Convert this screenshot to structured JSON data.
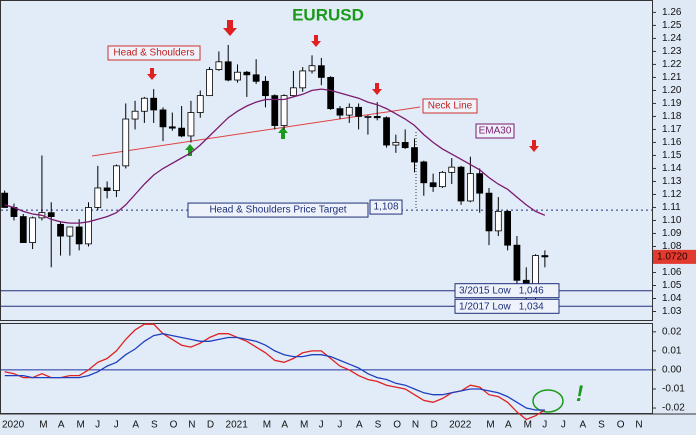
{
  "chart_data": [
    {
      "type": "candlestick",
      "title": "EURUSD",
      "open": [
        1.121,
        1.11,
        1.103,
        1.083,
        1.102,
        1.106,
        1.097,
        1.088,
        1.095,
        1.082,
        1.11,
        1.125,
        1.123,
        1.142,
        1.178,
        1.184,
        1.194,
        1.185,
        1.172,
        1.171,
        1.165,
        1.183,
        1.196,
        1.216,
        1.222,
        1.208,
        1.214,
        1.212,
        1.207,
        1.196,
        1.173,
        1.196,
        1.202,
        1.215,
        1.219,
        1.21,
        1.186,
        1.181,
        1.187,
        1.18,
        1.18,
        1.179,
        1.158,
        1.16,
        1.156,
        1.145,
        1.129,
        1.126,
        1.137,
        1.141,
        1.115,
        1.136,
        1.121,
        1.092,
        1.107,
        1.081,
        1.054,
        1.041,
        1.073,
        null,
        null,
        null,
        null,
        null,
        null,
        null,
        null,
        null,
        null,
        null
      ],
      "high": [
        1.123,
        1.113,
        1.105,
        1.103,
        1.15,
        1.114,
        1.099,
        1.095,
        1.101,
        1.114,
        1.142,
        1.13,
        1.143,
        1.19,
        1.192,
        1.195,
        1.201,
        1.187,
        1.183,
        1.188,
        1.192,
        1.2,
        1.218,
        1.23,
        1.235,
        1.22,
        1.215,
        1.224,
        1.211,
        1.197,
        1.197,
        1.215,
        1.218,
        1.227,
        1.225,
        1.211,
        1.188,
        1.19,
        1.19,
        1.181,
        1.191,
        1.18,
        1.166,
        1.17,
        1.163,
        1.146,
        1.136,
        1.138,
        1.148,
        1.142,
        1.149,
        1.14,
        1.125,
        1.118,
        1.108,
        1.088,
        1.064,
        1.074,
        1.077,
        null,
        null,
        null,
        null,
        null,
        null,
        null,
        null,
        null,
        null,
        null
      ],
      "low": [
        1.11,
        1.1,
        1.083,
        1.078,
        1.1,
        1.064,
        1.073,
        1.073,
        1.077,
        1.08,
        1.108,
        1.117,
        1.118,
        1.14,
        1.17,
        1.175,
        1.175,
        1.161,
        1.169,
        1.164,
        1.16,
        1.179,
        1.196,
        1.215,
        1.207,
        1.206,
        1.195,
        1.205,
        1.187,
        1.17,
        1.17,
        1.195,
        1.199,
        1.213,
        1.204,
        1.185,
        1.178,
        1.175,
        1.17,
        1.166,
        1.177,
        1.156,
        1.152,
        1.155,
        1.137,
        1.119,
        1.122,
        1.125,
        1.128,
        1.112,
        1.114,
        1.106,
        1.081,
        1.088,
        1.077,
        1.047,
        1.035,
        1.035,
        1.064,
        null,
        null,
        null,
        null,
        null,
        null,
        null,
        null,
        null,
        null,
        null
      ],
      "close": [
        1.11,
        1.103,
        1.083,
        1.102,
        1.106,
        1.103,
        1.088,
        1.095,
        1.082,
        1.11,
        1.125,
        1.123,
        1.142,
        1.178,
        1.184,
        1.194,
        1.185,
        1.172,
        1.171,
        1.165,
        1.183,
        1.196,
        1.216,
        1.222,
        1.208,
        1.214,
        1.212,
        1.207,
        1.196,
        1.173,
        1.196,
        1.202,
        1.215,
        1.219,
        1.21,
        1.186,
        1.181,
        1.187,
        1.18,
        1.18,
        1.179,
        1.158,
        1.16,
        1.156,
        1.145,
        1.129,
        1.126,
        1.137,
        1.141,
        1.115,
        1.136,
        1.121,
        1.092,
        1.107,
        1.081,
        1.054,
        1.041,
        1.073,
        1.072,
        null,
        null,
        null,
        null,
        null,
        null,
        null,
        null,
        null,
        null,
        null
      ],
      "up_color": "#ffffff",
      "down_color": "#000000",
      "series": [
        {
          "name": "EMA30",
          "color": "#7a1a6e",
          "values": [
            1.112,
            1.11,
            1.107,
            1.105,
            1.104,
            1.101,
            1.099,
            1.098,
            1.098,
            1.099,
            1.101,
            1.103,
            1.106,
            1.112,
            1.12,
            1.128,
            1.135,
            1.14,
            1.144,
            1.148,
            1.152,
            1.158,
            1.165,
            1.172,
            1.179,
            1.184,
            1.188,
            1.191,
            1.193,
            1.193,
            1.193,
            1.195,
            1.197,
            1.2,
            1.201,
            1.2,
            1.198,
            1.196,
            1.194,
            1.191,
            1.189,
            1.186,
            1.182,
            1.178,
            1.173,
            1.166,
            1.16,
            1.155,
            1.151,
            1.147,
            1.143,
            1.139,
            1.133,
            1.128,
            1.124,
            1.118,
            1.112,
            1.107,
            1.104,
            null,
            null,
            null,
            null,
            null,
            null,
            null,
            null,
            null,
            null,
            null
          ]
        }
      ],
      "ylim": [
        1.025,
        1.268
      ],
      "yticks": [
        1.26,
        1.25,
        1.24,
        1.23,
        1.22,
        1.21,
        {
          "value": 1.2,
          "label": "1.20"
        },
        1.19,
        1.18,
        1.17,
        1.16,
        1.15,
        1.14,
        1.13,
        1.12,
        1.11,
        {
          "value": 1.1,
          "label": "1.10"
        },
        1.09,
        1.08,
        1.07,
        1.06,
        1.05,
        1.04,
        1.03
      ],
      "last_price": {
        "value": 1.072,
        "label": "1.0720"
      },
      "annotations": [
        {
          "text": "Head & Shoulders"
        },
        {
          "text": "Neck Line"
        },
        {
          "text": "Head & Shoulders Price Target",
          "value": 1.108,
          "label": "1,108"
        },
        {
          "text": "3/2015 Low",
          "value": 1.046,
          "label": "1,046"
        },
        {
          "text": "1/2017 Low",
          "value": 1.034,
          "label": "1,034"
        }
      ]
    },
    {
      "type": "line",
      "categories": [
        "2020",
        null,
        null,
        null,
        "M",
        null,
        "A",
        null,
        "M",
        null,
        "J",
        null,
        "J",
        null,
        "A",
        null,
        "S",
        null,
        "O",
        null,
        "N",
        null,
        "D",
        null,
        "2021",
        null,
        null,
        null,
        "M",
        null,
        "A",
        null,
        "M",
        null,
        "J",
        null,
        "J",
        null,
        "A",
        null,
        "S",
        null,
        "O",
        null,
        "N",
        null,
        "D",
        null,
        "2022",
        null,
        null,
        null,
        "M",
        null,
        "A",
        null,
        "M",
        null,
        "J",
        null,
        "J",
        null,
        "A",
        null,
        "S",
        null,
        "O",
        null,
        "N",
        null
      ],
      "series": [
        {
          "color": "#e02020",
          "values": [
            -0.001,
            -0.002,
            -0.004,
            -0.004,
            -0.002,
            -0.004,
            -0.004,
            -0.003,
            -0.003,
            0.0,
            0.004,
            0.006,
            0.01,
            0.016,
            0.021,
            0.024,
            0.024,
            0.019,
            0.016,
            0.013,
            0.012,
            0.014,
            0.017,
            0.019,
            0.019,
            0.017,
            0.015,
            0.012,
            0.009,
            0.005,
            0.004,
            0.006,
            0.009,
            0.01,
            0.01,
            0.006,
            0.002,
            0.0,
            -0.003,
            -0.005,
            -0.006,
            -0.008,
            -0.009,
            -0.01,
            -0.013,
            -0.016,
            -0.017,
            -0.015,
            -0.012,
            -0.011,
            -0.008,
            -0.009,
            -0.013,
            -0.014,
            -0.017,
            -0.022,
            -0.026,
            -0.024,
            -0.021,
            null,
            null,
            null,
            null,
            null,
            null,
            null,
            null,
            null,
            null,
            null
          ]
        },
        {
          "color": "#2040c0",
          "values": [
            -0.003,
            -0.003,
            -0.003,
            -0.004,
            -0.004,
            -0.004,
            -0.004,
            -0.004,
            -0.004,
            -0.003,
            -0.001,
            0.002,
            0.004,
            0.008,
            0.011,
            0.015,
            0.018,
            0.019,
            0.018,
            0.017,
            0.016,
            0.015,
            0.015,
            0.016,
            0.017,
            0.017,
            0.016,
            0.015,
            0.013,
            0.01,
            0.008,
            0.007,
            0.007,
            0.008,
            0.008,
            0.007,
            0.005,
            0.003,
            0.001,
            -0.002,
            -0.004,
            -0.005,
            -0.007,
            -0.008,
            -0.01,
            -0.012,
            -0.013,
            -0.013,
            -0.012,
            -0.011,
            -0.01,
            -0.01,
            -0.011,
            -0.012,
            -0.014,
            -0.017,
            -0.02,
            -0.021,
            -0.021,
            null,
            null,
            null,
            null,
            null,
            null,
            null,
            null,
            null,
            null,
            null
          ]
        }
      ],
      "ylim": [
        -0.0226,
        0.0241
      ],
      "yticks": [
        0.02,
        0.01,
        {
          "value": 0,
          "label": "0.00"
        },
        -0.01,
        -0.02
      ],
      "zero_line": true,
      "annotations": [
        {
          "text": "!"
        }
      ]
    }
  ]
}
